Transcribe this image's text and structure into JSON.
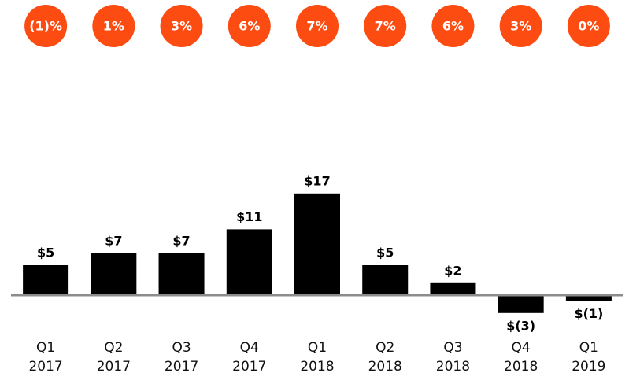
{
  "chart_data": {
    "type": "bar",
    "categories": [
      "Q1 2017",
      "Q2 2017",
      "Q3 2017",
      "Q4 2017",
      "Q1 2018",
      "Q2 2018",
      "Q3 2018",
      "Q4 2018",
      "Q1 2019"
    ],
    "values": [
      5,
      7,
      7,
      11,
      17,
      5,
      2,
      -3,
      -1
    ],
    "value_labels": [
      "$5",
      "$7",
      "$7",
      "$11",
      "$17",
      "$5",
      "$2",
      "$(3)",
      "$(1)"
    ],
    "percent_values": [
      -1,
      1,
      3,
      6,
      7,
      7,
      6,
      3,
      0
    ],
    "percent_labels": [
      "(1)%",
      "1%",
      "3%",
      "6%",
      "7%",
      "7%",
      "6%",
      "3%",
      "0%"
    ],
    "color": "#000000",
    "percent_color": "#fc4c12",
    "ylim": [
      -5,
      25
    ]
  }
}
